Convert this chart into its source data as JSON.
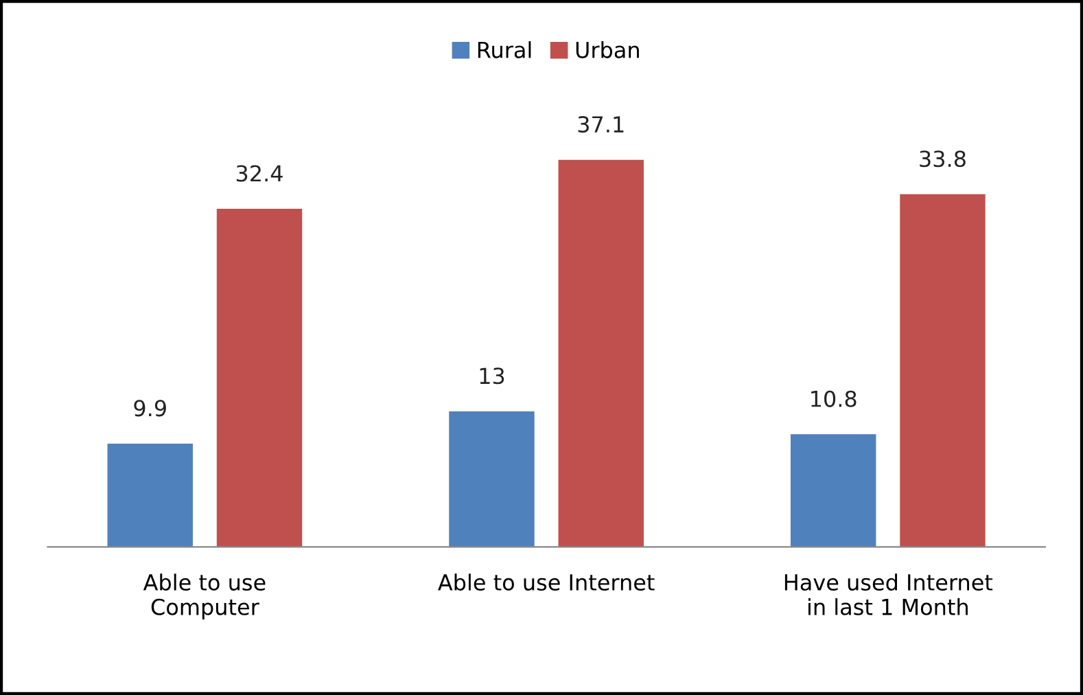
{
  "chart_data": {
    "type": "bar",
    "categories": [
      "Able to use\nComputer",
      "Able to use Internet",
      "Have used Internet\nin last 1 Month"
    ],
    "series": [
      {
        "name": "Rural",
        "color": "#4f81bd",
        "values": [
          9.9,
          13,
          10.8
        ]
      },
      {
        "name": "Urban",
        "color": "#c0504d",
        "values": [
          32.4,
          37.1,
          33.8
        ]
      }
    ],
    "data_labels": true,
    "legend": "top",
    "grid": false
  }
}
